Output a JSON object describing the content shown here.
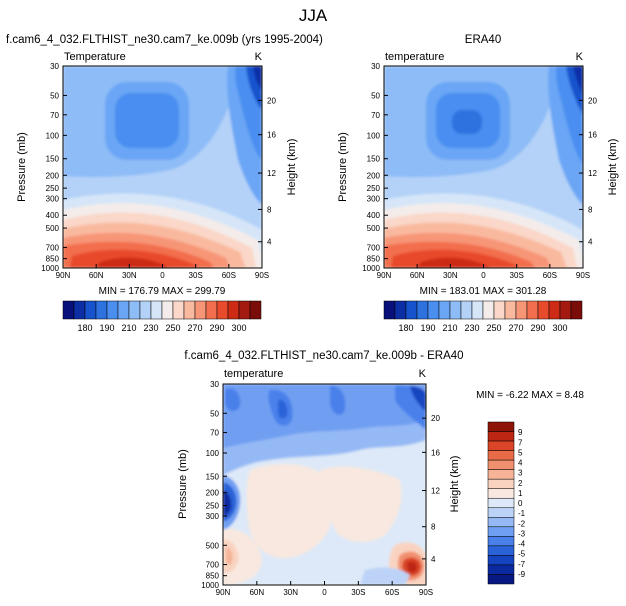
{
  "page_title": "JJA",
  "colors": {
    "scale_abs": [
      "#08107a",
      "#0d2fa6",
      "#1753cc",
      "#2e72e0",
      "#4a8ef0",
      "#6aa6f5",
      "#8ebcf7",
      "#b4d2f8",
      "#d6e6f8",
      "#f4ecea",
      "#fad7c8",
      "#f9b99f",
      "#f79577",
      "#f26e4e",
      "#e84a2c",
      "#cd2b16",
      "#a41a10",
      "#7a0d0a"
    ],
    "scale_diff": [
      "#081882",
      "#0b2aa0",
      "#1644c0",
      "#2a62d8",
      "#4a80ea",
      "#6f9ff2",
      "#95b9f5",
      "#bcd3f7",
      "#dde9f8",
      "#f8e8df",
      "#f9d3c0",
      "#f6b397",
      "#f1906f",
      "#e86a47",
      "#d94526",
      "#bd2612",
      "#8e1408"
    ]
  },
  "chart_data": [
    {
      "type": "heatmap",
      "title": "f.cam6_4_032.FLTHIST_ne30.cam7_ke.009b (yrs 1995-2004)",
      "left_label": "Temperature",
      "right_label": "K",
      "ylabel": "Pressure (mb)",
      "y2label": "Height (km)",
      "x_ticks": [
        "90N",
        "60N",
        "30N",
        "0",
        "30S",
        "60S",
        "90S"
      ],
      "y_ticks": [
        "30",
        "50",
        "70",
        "100",
        "150",
        "200",
        "250",
        "300",
        "400",
        "500",
        "700",
        "850",
        "1000"
      ],
      "y2_ticks": [
        "20",
        "16",
        "12",
        "8",
        "4"
      ],
      "minmax_text": "MIN = 176.79  MAX = 299.79",
      "min": 176.79,
      "max": 299.79,
      "colorbar_labels": [
        "180",
        "190",
        "210",
        "230",
        "250",
        "270",
        "290",
        "300"
      ]
    },
    {
      "type": "heatmap",
      "title": "ERA40",
      "left_label": "temperature",
      "right_label": "K",
      "ylabel": "Pressure (mb)",
      "y2label": "Height (km)",
      "x_ticks": [
        "90N",
        "60N",
        "30N",
        "0",
        "30S",
        "60S",
        "90S"
      ],
      "y_ticks": [
        "30",
        "50",
        "70",
        "100",
        "150",
        "200",
        "250",
        "300",
        "400",
        "500",
        "700",
        "850",
        "1000"
      ],
      "y2_ticks": [
        "20",
        "16",
        "12",
        "8",
        "4"
      ],
      "minmax_text": "MIN = 183.01  MAX = 301.28",
      "min": 183.01,
      "max": 301.28,
      "colorbar_labels": [
        "180",
        "190",
        "210",
        "230",
        "250",
        "270",
        "290",
        "300"
      ]
    },
    {
      "type": "heatmap",
      "title": "f.cam6_4_032.FLTHIST_ne30.cam7_ke.009b - ERA40",
      "left_label": "temperature",
      "right_label": "K",
      "ylabel": "Pressure (mb)",
      "y2label": "Height (km)",
      "x_ticks": [
        "90N",
        "60N",
        "30N",
        "0",
        "30S",
        "60S",
        "90S"
      ],
      "y_ticks": [
        "30",
        "50",
        "70",
        "100",
        "150",
        "200",
        "250",
        "300",
        "500",
        "700",
        "850",
        "1000"
      ],
      "y2_ticks": [
        "20",
        "16",
        "12",
        "8",
        "4"
      ],
      "minmax_text": "MIN = -6.22  MAX =  8.48",
      "min": -6.22,
      "max": 8.48,
      "colorbar_labels": [
        "9",
        "7",
        "5",
        "4",
        "3",
        "2",
        "1",
        "0",
        "-1",
        "-2",
        "-3",
        "-4",
        "-5",
        "-7",
        "-9"
      ]
    }
  ]
}
